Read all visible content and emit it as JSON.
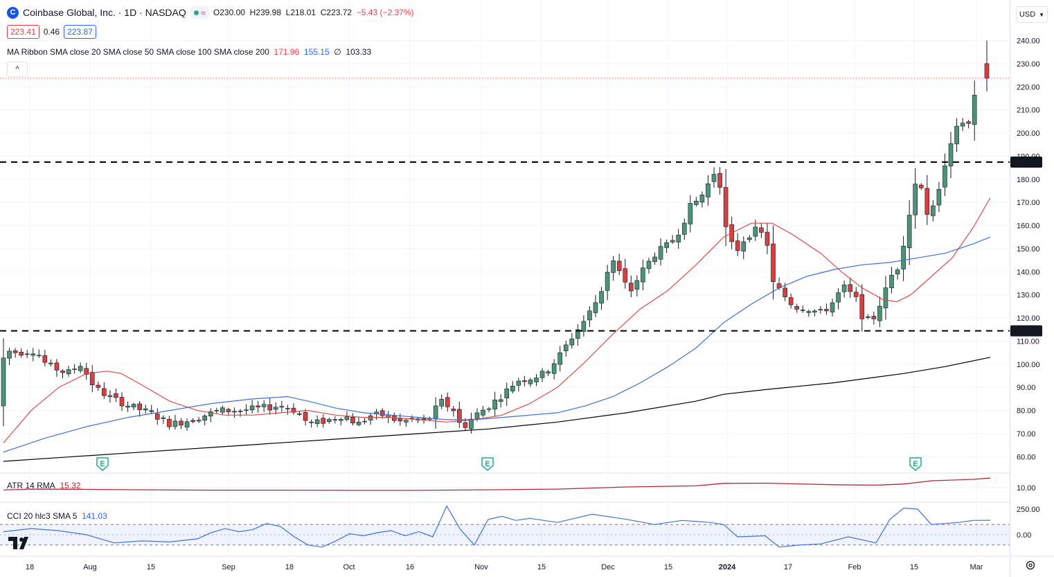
{
  "header": {
    "symbol_title": "Coinbase Global, Inc. · 1D · NASDAQ",
    "logo_letter": "C",
    "ohlc": {
      "open": "O230.00",
      "high": "H239.98",
      "low": "L218.01",
      "close": "C223.72",
      "change": "−5.43 (−2.37%)"
    },
    "bid": "223.41",
    "spread": "0.46",
    "ask": "223.87",
    "collapse_glyph": "^"
  },
  "currency_button": "USD",
  "indicators": {
    "ma_ribbon": {
      "label": "MA Ribbon SMA close 20 SMA close 50 SMA close 100 SMA close 200",
      "v20": "171.96",
      "v50": "155.15",
      "v100": "∅",
      "v200": "103.33"
    },
    "atr": {
      "label": "ATR 14 RMA",
      "value": "15.32"
    },
    "cci": {
      "label": "CCI 20 hlc3 SMA 5",
      "value": "141.03"
    }
  },
  "price_axis": {
    "ticks": [
      "240.00",
      "230.00",
      "220.00",
      "210.00",
      "200.00",
      "190.00",
      "180.00",
      "170.00",
      "160.00",
      "150.00",
      "140.00",
      "130.00",
      "120.00",
      "110.00",
      "100.00",
      "90.00",
      "80.00",
      "70.00",
      "60.00"
    ],
    "level_high": "187.43",
    "level_low": "114.45"
  },
  "atr_axis": {
    "ticks": [
      "10.00"
    ]
  },
  "cci_axis": {
    "ticks": [
      "250.00",
      "0.00"
    ]
  },
  "time_axis": {
    "labels": [
      "18",
      "Aug",
      "15",
      "Sep",
      "18",
      "Oct",
      "16",
      "Nov",
      "15",
      "Dec",
      "15",
      "2024",
      "17",
      "Feb",
      "15",
      "Mar"
    ]
  },
  "earnings_marker": "E",
  "colors": {
    "up": "#4d9477",
    "down": "#d54040",
    "sma20": "#e04848",
    "sma50": "#3c6fd6",
    "sma200": "#000000",
    "atr": "#b22833",
    "cci": "#3f6fe0"
  },
  "chart_data": {
    "type": "candlestick",
    "price_levels": [
      187.43,
      114.45
    ],
    "last_ohlc": {
      "open": 230.0,
      "high": 239.98,
      "low": 218.01,
      "close": 223.72
    },
    "y_range": [
      55,
      245
    ],
    "sma20": [
      [
        0,
        66
      ],
      [
        40,
        80
      ],
      [
        80,
        90
      ],
      [
        120,
        96
      ],
      [
        150,
        97
      ],
      [
        170,
        96
      ],
      [
        200,
        91
      ],
      [
        240,
        84
      ],
      [
        280,
        80
      ],
      [
        320,
        78
      ],
      [
        360,
        78
      ],
      [
        400,
        79
      ],
      [
        440,
        80
      ],
      [
        480,
        78
      ],
      [
        520,
        77
      ],
      [
        560,
        77
      ],
      [
        600,
        76
      ],
      [
        640,
        75
      ],
      [
        680,
        76
      ],
      [
        720,
        78
      ],
      [
        760,
        83
      ],
      [
        800,
        90
      ],
      [
        840,
        101
      ],
      [
        880,
        113
      ],
      [
        920,
        124
      ],
      [
        960,
        132
      ],
      [
        1000,
        143
      ],
      [
        1040,
        155
      ],
      [
        1080,
        161
      ],
      [
        1110,
        161
      ],
      [
        1140,
        156
      ],
      [
        1180,
        148
      ],
      [
        1210,
        140
      ],
      [
        1240,
        133
      ],
      [
        1270,
        128
      ],
      [
        1290,
        127
      ],
      [
        1310,
        130
      ],
      [
        1340,
        138
      ],
      [
        1370,
        146
      ],
      [
        1400,
        159
      ],
      [
        1425,
        172
      ]
    ],
    "sma50": [
      [
        0,
        62
      ],
      [
        60,
        68
      ],
      [
        120,
        73
      ],
      [
        180,
        77
      ],
      [
        240,
        80
      ],
      [
        300,
        83
      ],
      [
        360,
        85
      ],
      [
        410,
        86
      ],
      [
        440,
        84
      ],
      [
        480,
        81
      ],
      [
        520,
        79
      ],
      [
        560,
        78
      ],
      [
        600,
        77
      ],
      [
        640,
        76
      ],
      [
        680,
        76
      ],
      [
        720,
        77
      ],
      [
        760,
        78
      ],
      [
        800,
        79
      ],
      [
        840,
        82
      ],
      [
        880,
        86
      ],
      [
        920,
        92
      ],
      [
        960,
        99
      ],
      [
        1000,
        107
      ],
      [
        1040,
        118
      ],
      [
        1080,
        126
      ],
      [
        1120,
        133
      ],
      [
        1160,
        138
      ],
      [
        1200,
        141
      ],
      [
        1240,
        143
      ],
      [
        1280,
        144
      ],
      [
        1320,
        146
      ],
      [
        1360,
        148
      ],
      [
        1400,
        152
      ],
      [
        1425,
        155
      ]
    ],
    "sma200": [
      [
        0,
        58
      ],
      [
        100,
        60
      ],
      [
        200,
        62
      ],
      [
        300,
        64
      ],
      [
        400,
        66
      ],
      [
        500,
        68
      ],
      [
        600,
        70
      ],
      [
        700,
        72
      ],
      [
        800,
        75
      ],
      [
        900,
        79
      ],
      [
        1000,
        84
      ],
      [
        1040,
        87
      ],
      [
        1100,
        89
      ],
      [
        1200,
        92
      ],
      [
        1300,
        96
      ],
      [
        1360,
        99
      ],
      [
        1425,
        103
      ]
    ],
    "atr": [
      [
        0,
        8.7
      ],
      [
        40,
        9.2
      ],
      [
        100,
        9.1
      ],
      [
        200,
        8.8
      ],
      [
        300,
        8.6
      ],
      [
        400,
        8.6
      ],
      [
        500,
        8.5
      ],
      [
        600,
        8.5
      ],
      [
        700,
        8.8
      ],
      [
        800,
        9.2
      ],
      [
        900,
        10.4
      ],
      [
        1000,
        11.0
      ],
      [
        1040,
        12.4
      ],
      [
        1100,
        12.5
      ],
      [
        1200,
        11.6
      ],
      [
        1260,
        11.4
      ],
      [
        1300,
        12.0
      ],
      [
        1340,
        13.8
      ],
      [
        1400,
        14.6
      ],
      [
        1425,
        15.3
      ]
    ],
    "cci": [
      [
        0,
        30
      ],
      [
        40,
        60
      ],
      [
        80,
        40
      ],
      [
        120,
        0
      ],
      [
        160,
        -80
      ],
      [
        200,
        -60
      ],
      [
        240,
        -70
      ],
      [
        280,
        -40
      ],
      [
        300,
        20
      ],
      [
        320,
        60
      ],
      [
        340,
        30
      ],
      [
        360,
        50
      ],
      [
        380,
        110
      ],
      [
        400,
        80
      ],
      [
        420,
        -20
      ],
      [
        440,
        -100
      ],
      [
        460,
        -120
      ],
      [
        480,
        -60
      ],
      [
        500,
        10
      ],
      [
        520,
        -10
      ],
      [
        540,
        20
      ],
      [
        560,
        40
      ],
      [
        580,
        -10
      ],
      [
        600,
        30
      ],
      [
        620,
        -20
      ],
      [
        640,
        280
      ],
      [
        660,
        50
      ],
      [
        680,
        -100
      ],
      [
        700,
        150
      ],
      [
        720,
        180
      ],
      [
        740,
        140
      ],
      [
        760,
        160
      ],
      [
        800,
        120
      ],
      [
        850,
        200
      ],
      [
        900,
        150
      ],
      [
        940,
        100
      ],
      [
        980,
        140
      ],
      [
        1020,
        120
      ],
      [
        1040,
        100
      ],
      [
        1060,
        -20
      ],
      [
        1100,
        -10
      ],
      [
        1120,
        -120
      ],
      [
        1150,
        -100
      ],
      [
        1180,
        -90
      ],
      [
        1220,
        -20
      ],
      [
        1260,
        -80
      ],
      [
        1280,
        150
      ],
      [
        1300,
        260
      ],
      [
        1320,
        250
      ],
      [
        1340,
        100
      ],
      [
        1380,
        120
      ],
      [
        1400,
        140
      ],
      [
        1425,
        141
      ]
    ]
  }
}
